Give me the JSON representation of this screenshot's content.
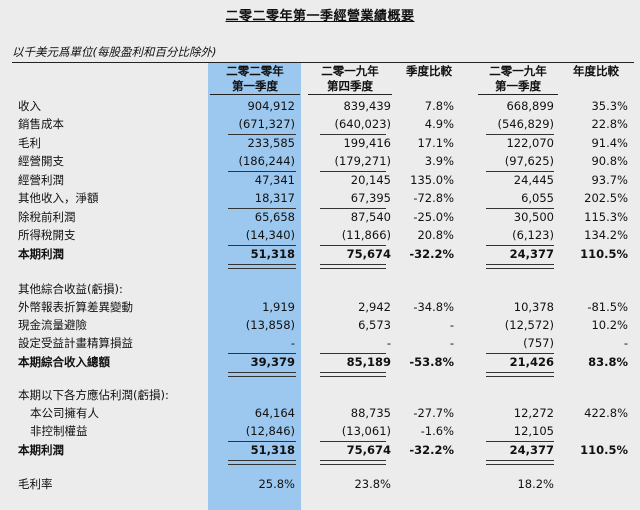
{
  "title": "二零二零年第一季經營業績概要",
  "unit_note": "以千美元爲單位(每股盈利和百分比除外)",
  "columns": [
    {
      "line1": "二零二零年",
      "line2": "第一季度"
    },
    {
      "line1": "二零一九年",
      "line2": "第四季度"
    },
    {
      "line1": "季度比較",
      "line2": ""
    },
    {
      "line1": "二零一九年",
      "line2": "第一季度"
    },
    {
      "line1": "年度比較",
      "line2": ""
    }
  ],
  "rows": [
    {
      "label": "收入",
      "values": [
        "904,912",
        "839,439",
        "7.8%",
        "668,899",
        "35.3%"
      ]
    },
    {
      "label": "銷售成本",
      "values": [
        "(671,327)",
        "(640,023)",
        "4.9%",
        "(546,829)",
        "22.8%"
      ]
    },
    {
      "label": "毛利",
      "values": [
        "233,585",
        "199,416",
        "17.1%",
        "122,070",
        "91.4%"
      ]
    },
    {
      "label": "經營開支",
      "values": [
        "(186,244)",
        "(179,271)",
        "3.9%",
        "(97,625)",
        "90.8%"
      ]
    },
    {
      "label": "經營利潤",
      "values": [
        "47,341",
        "20,145",
        "135.0%",
        "24,445",
        "93.7%"
      ]
    },
    {
      "label": "其他收入，淨額",
      "values": [
        "18,317",
        "67,395",
        "-72.8%",
        "6,055",
        "202.5%"
      ]
    },
    {
      "label": "除稅前利潤",
      "values": [
        "65,658",
        "87,540",
        "-25.0%",
        "30,500",
        "115.3%"
      ]
    },
    {
      "label": "所得稅開支",
      "values": [
        "(14,340)",
        "(11,866)",
        "20.8%",
        "(6,123)",
        "134.2%"
      ]
    },
    {
      "label": "本期利潤",
      "values": [
        "51,318",
        "75,674",
        "-32.2%",
        "24,377",
        "110.5%"
      ]
    },
    {
      "label": "其他綜合收益(虧損):",
      "values": [
        "",
        "",
        "",
        "",
        ""
      ]
    },
    {
      "label": "外幣報表折算差異變動",
      "values": [
        "1,919",
        "2,942",
        "-34.8%",
        "10,378",
        "-81.5%"
      ]
    },
    {
      "label": "現金流量避險",
      "values": [
        "(13,858)",
        "6,573",
        "-",
        "(12,572)",
        "10.2%"
      ]
    },
    {
      "label": "設定受益計畫精算損益",
      "values": [
        "-",
        "-",
        "-",
        "(757)",
        "-"
      ]
    },
    {
      "label": "本期綜合收入總額",
      "values": [
        "39,379",
        "85,189",
        "-53.8%",
        "21,426",
        "83.8%"
      ]
    },
    {
      "label": "本期以下各方應佔利潤(虧損):",
      "values": [
        "",
        "",
        "",
        "",
        ""
      ]
    },
    {
      "label": "本公司擁有人",
      "values": [
        "64,164",
        "88,735",
        "-27.7%",
        "12,272",
        "422.8%"
      ]
    },
    {
      "label": "非控制權益",
      "values": [
        "(12,846)",
        "(13,061)",
        "-1.6%",
        "12,105",
        ""
      ]
    },
    {
      "label": "本期利潤",
      "values": [
        "51,318",
        "75,674",
        "-32.2%",
        "24,377",
        "110.5%"
      ]
    },
    {
      "label": "毛利率",
      "values": [
        "25.8%",
        "23.8%",
        "",
        "18.2%",
        ""
      ]
    }
  ],
  "colors": {
    "highlight_column": "#9cc8ef",
    "background": "#ececec"
  }
}
